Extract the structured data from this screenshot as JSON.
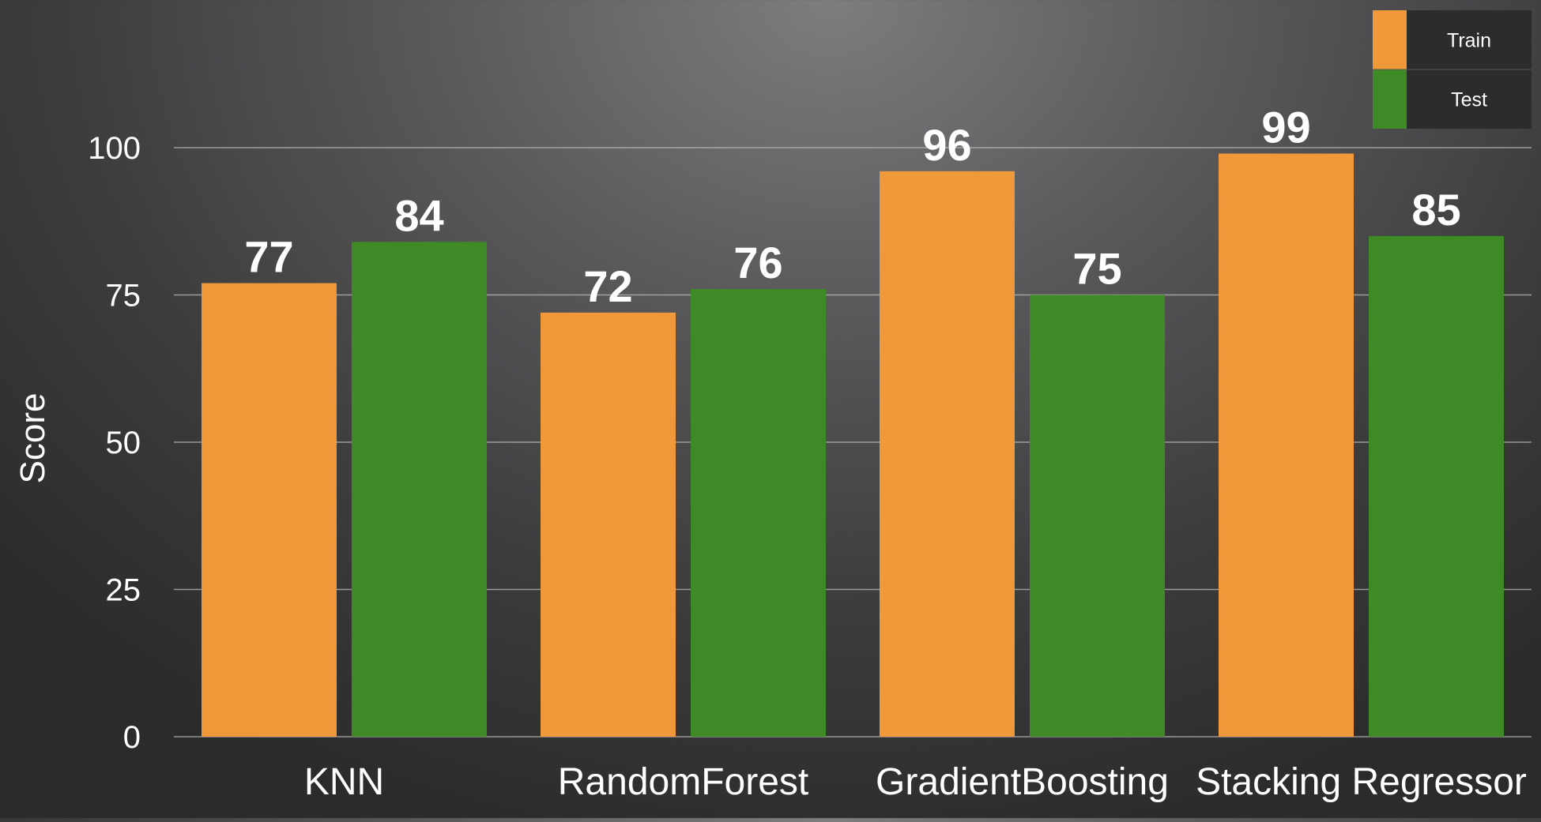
{
  "chart_data": {
    "type": "bar",
    "categories": [
      "KNN",
      "RandomForest",
      "GradientBoosting",
      "Stacking Regressor"
    ],
    "series": [
      {
        "name": "Train",
        "color": "#f0993a",
        "values": [
          77,
          72,
          96,
          99
        ]
      },
      {
        "name": "Test",
        "color": "#3e8a27",
        "values": [
          84,
          76,
          75,
          85
        ]
      }
    ],
    "ylabel": "Score",
    "xlabel": "",
    "title": "",
    "ylim": [
      0,
      100
    ],
    "yticks": [
      0,
      25,
      50,
      75,
      100
    ],
    "grid": true,
    "legend_position": "top-right",
    "colors": {
      "legend_box": "#2c2c2d"
    }
  }
}
